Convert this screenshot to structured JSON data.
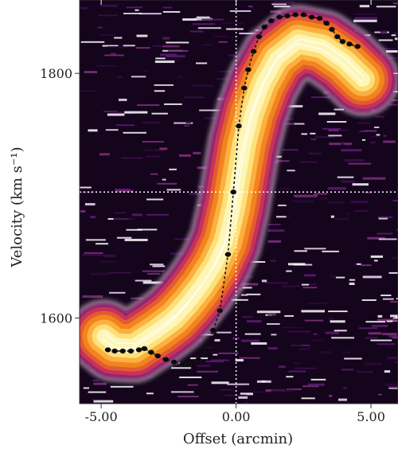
{
  "chart_data": {
    "type": "heatmap",
    "title": "",
    "xlabel": "Offset (arcmin)",
    "ylabel": "Velocity (km s⁻¹)",
    "xlim": [
      -5.8,
      6.0
    ],
    "ylim": [
      1530,
      1860
    ],
    "x_ticks": [
      -5.0,
      0.0,
      5.0
    ],
    "x_tick_labels": [
      "-5.00",
      "0.00",
      "5.00"
    ],
    "y_ticks": [
      1600,
      1800
    ],
    "y_tick_labels": [
      "1600",
      "1800"
    ],
    "colormap": "inferno-like (black, purple, red, orange, yellow)",
    "reference_lines": {
      "x": 0.0,
      "y": 1703
    },
    "emission_ridge": {
      "x": [
        -4.9,
        -4.5,
        -3.8,
        -2.9,
        -2.3,
        -1.8,
        -1.3,
        -0.8,
        -0.4,
        -0.1,
        0.1,
        0.3,
        0.6,
        1.0,
        1.5,
        2.3,
        3.2,
        4.0,
        4.7
      ],
      "y": [
        1585,
        1578,
        1577,
        1590,
        1600,
        1612,
        1626,
        1643,
        1662,
        1690,
        1716,
        1742,
        1768,
        1792,
        1812,
        1826,
        1822,
        1810,
        1795
      ]
    },
    "rotation_curve": {
      "x": [
        -4.75,
        -4.5,
        -4.2,
        -3.9,
        -3.6,
        -3.4,
        -3.15,
        -2.9,
        -2.6,
        -2.3,
        -2.0,
        -1.75,
        -1.4,
        -1.1,
        -0.85,
        -0.6,
        -0.3,
        -0.1,
        0.1,
        0.3,
        0.45,
        0.65,
        0.85,
        1.05,
        1.3,
        1.6,
        1.9,
        2.2,
        2.5,
        2.8,
        3.1,
        3.35,
        3.55,
        3.75,
        3.95,
        4.2,
        4.5
      ],
      "y": [
        1574,
        1573,
        1573,
        1573,
        1574,
        1575,
        1572,
        1569,
        1566,
        1564,
        1562,
        1562,
        1566,
        1574,
        1590,
        1606,
        1652,
        1703,
        1757,
        1788,
        1803,
        1818,
        1830,
        1838,
        1843,
        1846,
        1847,
        1848,
        1848,
        1846,
        1845,
        1841,
        1836,
        1830,
        1826,
        1824,
        1822
      ]
    }
  }
}
